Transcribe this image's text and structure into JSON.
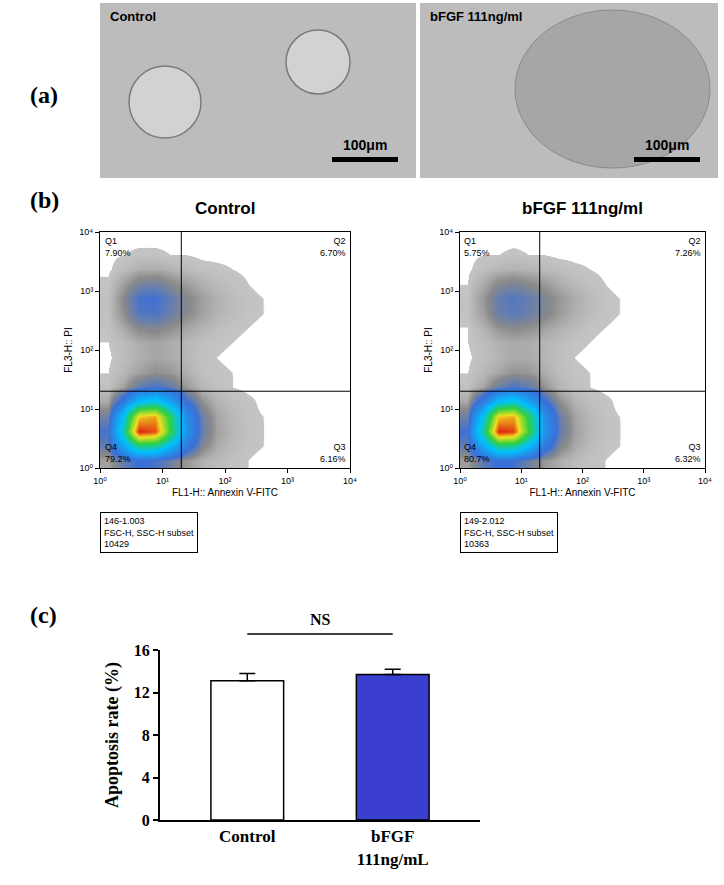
{
  "panel_a": {
    "letter": "(a)",
    "images": [
      {
        "label": "Control",
        "scale_bar": "100μm"
      },
      {
        "label": "bFGF 111ng/ml",
        "scale_bar": "100μm"
      }
    ]
  },
  "chart_data": [
    {
      "type": "density",
      "letter": "(b)",
      "title": "Control",
      "xlabel": "FL1-H:: Annexin V-FITC",
      "ylabel": "FL3-H:: PI",
      "log": true,
      "grid": false,
      "tick_labels": true,
      "xlim": [
        1,
        10000
      ],
      "ylim": [
        1,
        10000
      ],
      "xticks": [
        {
          "value": 1,
          "label": "10⁰"
        },
        {
          "value": 10,
          "label": "10¹"
        },
        {
          "value": 100,
          "label": "10²"
        },
        {
          "value": 1000,
          "label": "10³"
        },
        {
          "value": 10000,
          "label": "10⁴"
        }
      ],
      "yticks": [
        {
          "value": 1,
          "label": "10⁰"
        },
        {
          "value": 10,
          "label": "10¹"
        },
        {
          "value": 100,
          "label": "10²"
        },
        {
          "value": 1000,
          "label": "10³"
        },
        {
          "value": 10000,
          "label": "10⁴"
        }
      ],
      "x_gate": 20,
      "y_gate": 20,
      "quadrants": [
        {
          "name": "Q1",
          "value": 7.9,
          "label": "7.90%"
        },
        {
          "name": "Q2",
          "value": 6.7,
          "label": "6.70%"
        },
        {
          "name": "Q3",
          "value": 6.16,
          "label": "6.16%"
        },
        {
          "name": "Q4",
          "value": 79.2,
          "label": "79.2%"
        }
      ],
      "sample": "146-1.003",
      "subset": "FSC-H, SSC-H subset",
      "events": 10429,
      "x_edges": [
        1,
        1.778,
        3.162,
        5.623,
        10,
        17.78,
        31.62,
        56.23,
        100,
        177.8,
        316.2,
        562.3,
        1000,
        1778,
        3162,
        5623,
        10000
      ],
      "y_edges": [
        1,
        1.778,
        3.162,
        5.623,
        10,
        17.78,
        31.62,
        56.23,
        100,
        177.8,
        316.2,
        562.3,
        1000,
        1778,
        3162,
        5623,
        10000
      ],
      "counts": [
        [
          20,
          60,
          90,
          80,
          50,
          25,
          12,
          6,
          3,
          1,
          0,
          0,
          0,
          0,
          0,
          0
        ],
        [
          60,
          250,
          500,
          480,
          300,
          120,
          40,
          15,
          6,
          2,
          1,
          0,
          0,
          0,
          0,
          0
        ],
        [
          80,
          450,
          1100,
          1050,
          600,
          200,
          60,
          20,
          8,
          3,
          1,
          0,
          0,
          0,
          0,
          0
        ],
        [
          50,
          350,
          900,
          950,
          550,
          180,
          55,
          18,
          7,
          2,
          1,
          0,
          0,
          0,
          0,
          0
        ],
        [
          15,
          120,
          320,
          380,
          240,
          90,
          30,
          10,
          4,
          2,
          0,
          0,
          0,
          0,
          0,
          0
        ],
        [
          3,
          20,
          60,
          80,
          60,
          25,
          8,
          3,
          1,
          0,
          0,
          0,
          0,
          0,
          0,
          0
        ],
        [
          1,
          8,
          20,
          30,
          25,
          12,
          4,
          2,
          1,
          0,
          0,
          0,
          0,
          0,
          0,
          0
        ],
        [
          0,
          5,
          12,
          18,
          15,
          8,
          3,
          1,
          0,
          0,
          0,
          0,
          0,
          0,
          0,
          0
        ],
        [
          1,
          6,
          14,
          18,
          14,
          8,
          4,
          2,
          1,
          0,
          0,
          0,
          0,
          0,
          0,
          0
        ],
        [
          2,
          15,
          35,
          40,
          30,
          18,
          10,
          5,
          2,
          1,
          0,
          0,
          0,
          0,
          0,
          0
        ],
        [
          3,
          30,
          70,
          75,
          55,
          35,
          20,
          10,
          5,
          2,
          1,
          0,
          0,
          0,
          0,
          0
        ],
        [
          3,
          35,
          80,
          85,
          60,
          38,
          22,
          12,
          5,
          2,
          1,
          0,
          0,
          0,
          0,
          0
        ],
        [
          2,
          20,
          45,
          50,
          35,
          22,
          12,
          6,
          3,
          1,
          0,
          0,
          0,
          0,
          0,
          0
        ],
        [
          0,
          5,
          12,
          14,
          10,
          6,
          3,
          2,
          1,
          0,
          0,
          0,
          0,
          0,
          0,
          0
        ],
        [
          0,
          1,
          2,
          2,
          1,
          1,
          0,
          0,
          0,
          0,
          0,
          0,
          0,
          0,
          0,
          0
        ],
        [
          0,
          0,
          0,
          0,
          0,
          0,
          0,
          0,
          0,
          0,
          0,
          0,
          0,
          0,
          0,
          0
        ]
      ]
    },
    {
      "type": "density",
      "title": "bFGF 111ng/ml",
      "xlabel": "FL1-H:: Annexin V-FITC",
      "ylabel": "FL3-H:: PI",
      "log": true,
      "grid": false,
      "tick_labels": true,
      "xlim": [
        1,
        10000
      ],
      "ylim": [
        1,
        10000
      ],
      "xticks": [
        {
          "value": 1,
          "label": "10⁰"
        },
        {
          "value": 10,
          "label": "10¹"
        },
        {
          "value": 100,
          "label": "10²"
        },
        {
          "value": 1000,
          "label": "10³"
        },
        {
          "value": 10000,
          "label": "10⁴"
        }
      ],
      "yticks": [
        {
          "value": 1,
          "label": "10⁰"
        },
        {
          "value": 10,
          "label": "10¹"
        },
        {
          "value": 100,
          "label": "10²"
        },
        {
          "value": 1000,
          "label": "10³"
        },
        {
          "value": 10000,
          "label": "10⁴"
        }
      ],
      "x_gate": 20,
      "y_gate": 20,
      "quadrants": [
        {
          "name": "Q1",
          "value": 5.75,
          "label": "5.75%"
        },
        {
          "name": "Q2",
          "value": 7.26,
          "label": "7.26%"
        },
        {
          "name": "Q3",
          "value": 6.32,
          "label": "6.32%"
        },
        {
          "name": "Q4",
          "value": 80.7,
          "label": "80.7%"
        }
      ],
      "sample": "149-2.012",
      "subset": "FSC-H, SSC-H subset",
      "events": 10363,
      "x_edges": [
        1,
        1.778,
        3.162,
        5.623,
        10,
        17.78,
        31.62,
        56.23,
        100,
        177.8,
        316.2,
        562.3,
        1000,
        1778,
        3162,
        5623,
        10000
      ],
      "y_edges": [
        1,
        1.778,
        3.162,
        5.623,
        10,
        17.78,
        31.62,
        56.23,
        100,
        177.8,
        316.2,
        562.3,
        1000,
        1778,
        3162,
        5623,
        10000
      ],
      "counts": [
        [
          22,
          64,
          95,
          84,
          52,
          26,
          13,
          6,
          3,
          1,
          0,
          0,
          0,
          0,
          0,
          0
        ],
        [
          62,
          260,
          510,
          490,
          305,
          122,
          41,
          16,
          6,
          2,
          1,
          0,
          0,
          0,
          0,
          0
        ],
        [
          85,
          470,
          1120,
          1080,
          610,
          205,
          62,
          21,
          8,
          3,
          1,
          0,
          0,
          0,
          0,
          0
        ],
        [
          52,
          360,
          920,
          960,
          560,
          185,
          56,
          19,
          7,
          2,
          1,
          0,
          0,
          0,
          0,
          0
        ],
        [
          16,
          125,
          330,
          390,
          245,
          92,
          31,
          10,
          4,
          2,
          0,
          0,
          0,
          0,
          0,
          0
        ],
        [
          3,
          18,
          55,
          78,
          62,
          28,
          9,
          3,
          1,
          0,
          0,
          0,
          0,
          0,
          0,
          0
        ],
        [
          1,
          7,
          18,
          28,
          26,
          14,
          5,
          2,
          1,
          0,
          0,
          0,
          0,
          0,
          0,
          0
        ],
        [
          0,
          4,
          10,
          16,
          15,
          9,
          4,
          1,
          0,
          0,
          0,
          0,
          0,
          0,
          0,
          0
        ],
        [
          1,
          5,
          12,
          16,
          14,
          9,
          5,
          2,
          1,
          0,
          0,
          0,
          0,
          0,
          0,
          0
        ],
        [
          1,
          10,
          28,
          35,
          30,
          20,
          12,
          6,
          2,
          1,
          0,
          0,
          0,
          0,
          0,
          0
        ],
        [
          2,
          22,
          55,
          65,
          55,
          40,
          24,
          12,
          5,
          2,
          1,
          0,
          0,
          0,
          0,
          0
        ],
        [
          2,
          25,
          62,
          72,
          60,
          42,
          26,
          14,
          6,
          2,
          1,
          0,
          0,
          0,
          0,
          0
        ],
        [
          1,
          15,
          35,
          42,
          35,
          24,
          14,
          7,
          3,
          1,
          0,
          0,
          0,
          0,
          0,
          0
        ],
        [
          0,
          4,
          9,
          11,
          9,
          6,
          4,
          2,
          1,
          0,
          0,
          0,
          0,
          0,
          0,
          0
        ],
        [
          0,
          1,
          1,
          2,
          1,
          1,
          0,
          0,
          0,
          0,
          0,
          0,
          0,
          0,
          0,
          0
        ],
        [
          0,
          0,
          0,
          0,
          0,
          0,
          0,
          0,
          0,
          0,
          0,
          0,
          0,
          0,
          0,
          0
        ]
      ]
    },
    {
      "type": "bar",
      "letter": "(c)",
      "categories": [
        "Control",
        "bFGF 111ng/mL"
      ],
      "values": [
        13.1,
        13.7
      ],
      "error": [
        0.7,
        0.5
      ],
      "colors": [
        "#ffffff",
        "#3a3fcf"
      ],
      "ylabel": "Apoptosis rate (%)",
      "ylim": [
        0,
        16
      ],
      "yticks": [
        0,
        4,
        8,
        12,
        16
      ],
      "grid": false,
      "annotations": [
        {
          "text": "NS",
          "between": [
            "Control",
            "bFGF 111ng/mL"
          ]
        }
      ]
    }
  ]
}
